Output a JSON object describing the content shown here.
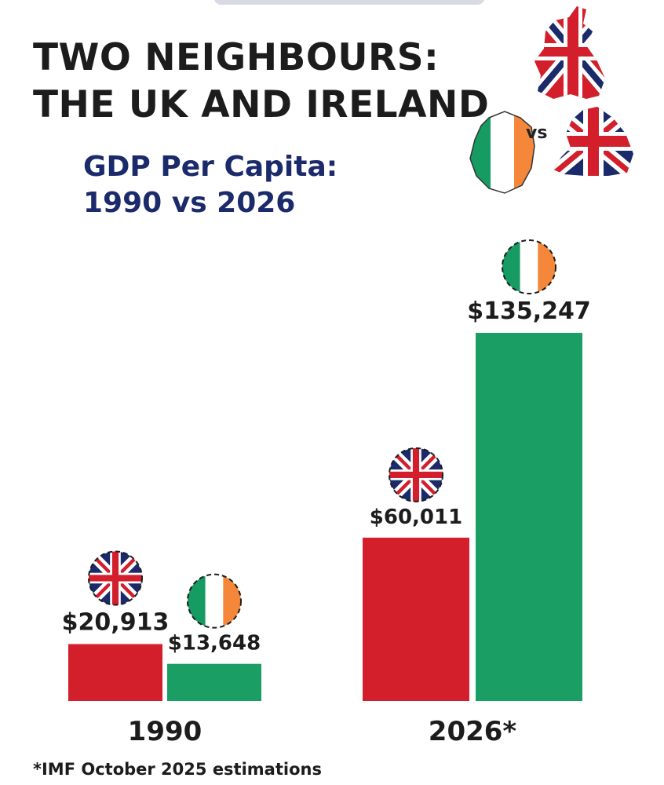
{
  "title_line1": "TWO NEIGHBOURS:",
  "title_line2": "THE UK AND IRELAND",
  "subtitle_line1": "GDP Per Capita:",
  "subtitle_line2": "1990 vs 2026",
  "vs_text": "vs",
  "footnote": "*IMF October 2025 estimations",
  "colors": {
    "uk": "#d21f2b",
    "ireland": "#1a9e63",
    "navy": "#1b2a6b",
    "orange": "#f5873a",
    "green_flag": "#169b62"
  },
  "chart_data": {
    "type": "bar",
    "categories": [
      "1990",
      "2026*"
    ],
    "series": [
      {
        "name": "",
        "country": "uk",
        "flag": "uk-flag-icon",
        "values": [
          20913,
          60011
        ],
        "value_labels": [
          "$20,913",
          "$60,011"
        ]
      },
      {
        "name": "",
        "country": "ireland",
        "flag": "ireland-flag-icon",
        "values": [
          13648,
          135247
        ],
        "value_labels": [
          "$13,648",
          "$135,247"
        ]
      }
    ],
    "title": "GDP Per Capita: 1990 vs 2026",
    "xlabel": "",
    "ylabel": "",
    "grid": false,
    "legend": "none"
  }
}
